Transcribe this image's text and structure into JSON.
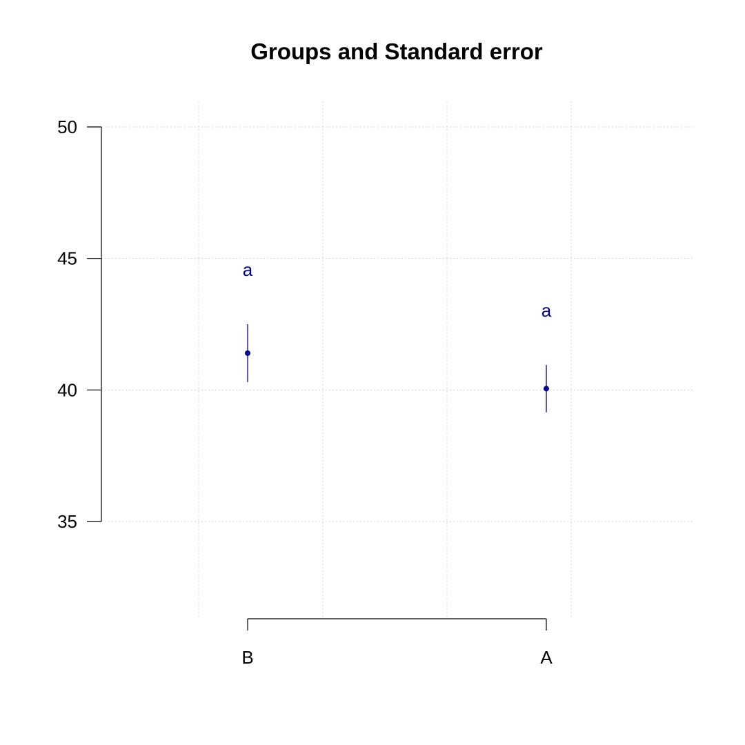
{
  "chart_data": {
    "type": "scatter",
    "title": "Groups and Standard error",
    "xlabel": "",
    "ylabel": "",
    "categories": [
      "B",
      "A"
    ],
    "series": [
      {
        "means": [
          41.4,
          40.05
        ],
        "se_upper": [
          42.5,
          40.95
        ],
        "se_lower": [
          40.3,
          39.15
        ],
        "group_letters": [
          "a",
          "a"
        ]
      }
    ],
    "y_ticks": [
      35,
      40,
      45,
      50
    ],
    "y_tick_labels": [
      "35",
      "40",
      "45",
      "50"
    ],
    "ylim": [
      31.3,
      50.9
    ],
    "grid": true,
    "colors": {
      "points": "#00008b",
      "letters": "#00008b",
      "axis": "#000000",
      "grid": "#d3d3d3"
    }
  }
}
